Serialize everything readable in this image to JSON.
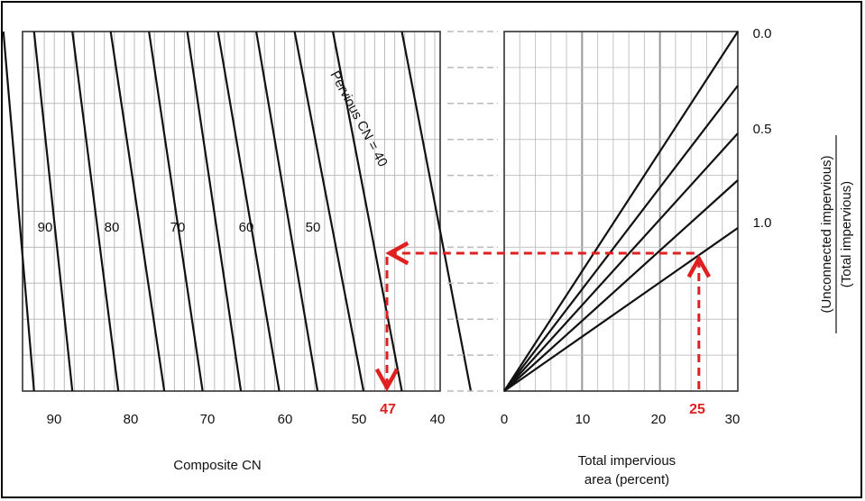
{
  "chart_data": [
    {
      "type": "line",
      "name": "composite-cn-panel",
      "xlabel": "Composite CN",
      "x_ticks": [
        "90",
        "80",
        "70",
        "60",
        "50",
        "40"
      ],
      "xlim": [
        92.5,
        38
      ],
      "series_label_prefix": "Pervious CN = ",
      "curve_labels": [
        "90",
        "80",
        "70",
        "60",
        "50",
        "40"
      ],
      "series": [
        {
          "pervious_cn": 95,
          "cn_at_top": 95,
          "cn_at_bottom": 91
        },
        {
          "pervious_cn": 90,
          "cn_at_top": 91,
          "cn_at_bottom": 86
        },
        {
          "pervious_cn": 85,
          "cn_at_top": 86,
          "cn_at_bottom": 80
        },
        {
          "pervious_cn": 80,
          "cn_at_top": 81,
          "cn_at_bottom": 74
        },
        {
          "pervious_cn": 75,
          "cn_at_top": 76,
          "cn_at_bottom": 69
        },
        {
          "pervious_cn": 70,
          "cn_at_top": 71,
          "cn_at_bottom": 64
        },
        {
          "pervious_cn": 65,
          "cn_at_top": 67,
          "cn_at_bottom": 59
        },
        {
          "pervious_cn": 60,
          "cn_at_top": 62,
          "cn_at_bottom": 54
        },
        {
          "pervious_cn": 55,
          "cn_at_top": 57,
          "cn_at_bottom": 48
        },
        {
          "pervious_cn": 50,
          "cn_at_top": 52,
          "cn_at_bottom": 43
        },
        {
          "pervious_cn": 40,
          "cn_at_top": 43,
          "cn_at_bottom": 34
        }
      ]
    },
    {
      "type": "line",
      "name": "impervious-ratio-panel",
      "xlabel_line1": "Total impervious",
      "xlabel_line2": "area (percent)",
      "x_ticks": [
        "0",
        "10",
        "20",
        "30"
      ],
      "xlim": [
        0,
        30
      ],
      "ylabel_numerator": "(Unconnected impervious)",
      "ylabel_denominator": "(Total impervious)",
      "y_ticks": [
        "0.0",
        "0.5",
        "1.0"
      ],
      "series": [
        {
          "ratio": 0.0,
          "x_end": 30,
          "level_at_end": 0.0
        },
        {
          "ratio": 0.25,
          "x_end": 30,
          "level_at_end": 0.25
        },
        {
          "ratio": 0.5,
          "x_end": 30,
          "level_at_end": 0.5
        },
        {
          "ratio": 0.75,
          "x_end": 30,
          "level_at_end": 0.75
        },
        {
          "ratio": 1.0,
          "x_end": 30,
          "level_at_end": 1.0
        }
      ]
    }
  ],
  "annotation": {
    "color": "#e02020",
    "impervious_value": "25",
    "composite_cn_result": "47",
    "impervious_pct": 25,
    "cn_result": 47
  }
}
